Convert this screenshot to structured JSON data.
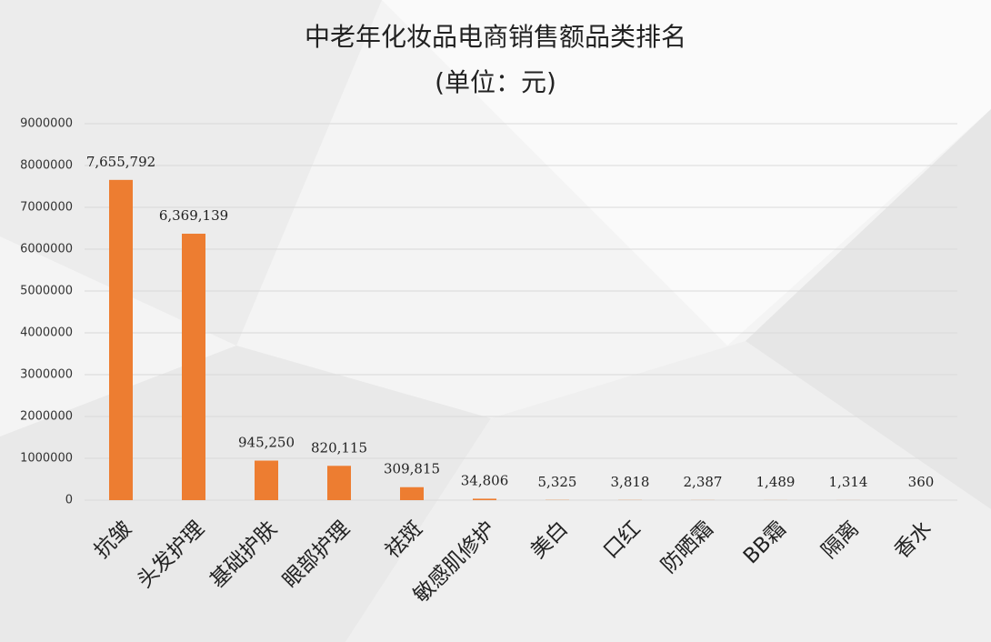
{
  "chart_data": {
    "type": "bar",
    "title": "中老年化妆品电商销售额品类排名",
    "subtitle": "(单位：元)",
    "categories": [
      "抗皱",
      "头发护理",
      "基础护肤",
      "眼部护理",
      "祛斑",
      "敏感肌修护",
      "美白",
      "口红",
      "防晒霜",
      "BB霜",
      "隔离",
      "香水"
    ],
    "values": [
      7655792,
      6369139,
      945250,
      820115,
      309815,
      34806,
      5325,
      3818,
      2387,
      1489,
      1314,
      360
    ],
    "value_labels": [
      "7,655,792",
      "6,369,139",
      "945,250",
      "820,115",
      "309,815",
      "34,806",
      "5,325",
      "3,818",
      "2,387",
      "1,489",
      "1,314",
      "360"
    ],
    "color": "#ed7d31",
    "ylim": [
      0,
      9000000
    ],
    "yticks": [
      0,
      1000000,
      2000000,
      3000000,
      4000000,
      5000000,
      6000000,
      7000000,
      8000000,
      9000000
    ],
    "grid": true
  }
}
